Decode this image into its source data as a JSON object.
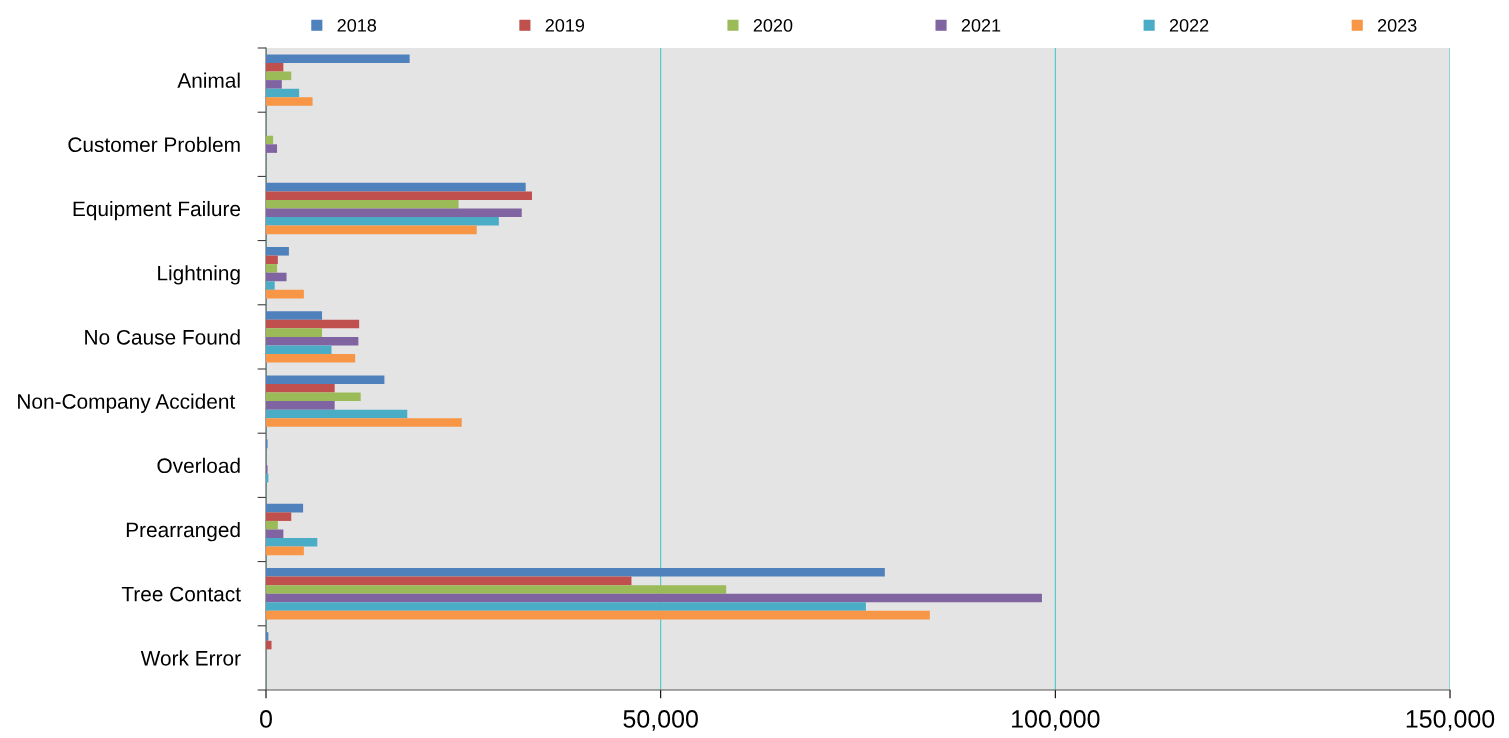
{
  "chart_data": {
    "type": "bar",
    "orientation": "horizontal",
    "categories": [
      "Animal",
      "Customer Problem",
      "Equipment Failure",
      "Lightning",
      "No Cause Found",
      "Non-Company Accident ",
      "Overload",
      "Prearranged",
      "Tree Contact",
      "Work Error"
    ],
    "series": [
      {
        "name": "2018",
        "color": "#4f81bd",
        "values": [
          18200,
          0,
          32900,
          2900,
          7100,
          15000,
          200,
          4700,
          78400,
          300
        ]
      },
      {
        "name": "2019",
        "color": "#c0504d",
        "values": [
          2200,
          0,
          33700,
          1500,
          11800,
          8700,
          0,
          3200,
          46300,
          700
        ]
      },
      {
        "name": "2020",
        "color": "#9bbb59",
        "values": [
          3200,
          900,
          24400,
          1400,
          7100,
          12000,
          0,
          1500,
          58300,
          0
        ]
      },
      {
        "name": "2021",
        "color": "#8064a2",
        "values": [
          2000,
          1400,
          32400,
          2600,
          11700,
          8700,
          200,
          2200,
          98300,
          0
        ]
      },
      {
        "name": "2022",
        "color": "#4bacc6",
        "values": [
          4200,
          0,
          29500,
          1100,
          8300,
          17900,
          300,
          6500,
          76000,
          0
        ]
      },
      {
        "name": "2023",
        "color": "#f79646",
        "values": [
          5900,
          0,
          26700,
          4800,
          11300,
          24800,
          0,
          4800,
          84100,
          0
        ]
      }
    ],
    "xlim": [
      0,
      150000
    ],
    "xticks": [
      {
        "value": 0,
        "label": "0"
      },
      {
        "value": 50000,
        "label": "50,000"
      },
      {
        "value": 100000,
        "label": "100,000"
      },
      {
        "value": 150000,
        "label": "150,000"
      }
    ],
    "grid": "x",
    "legend": "top"
  }
}
